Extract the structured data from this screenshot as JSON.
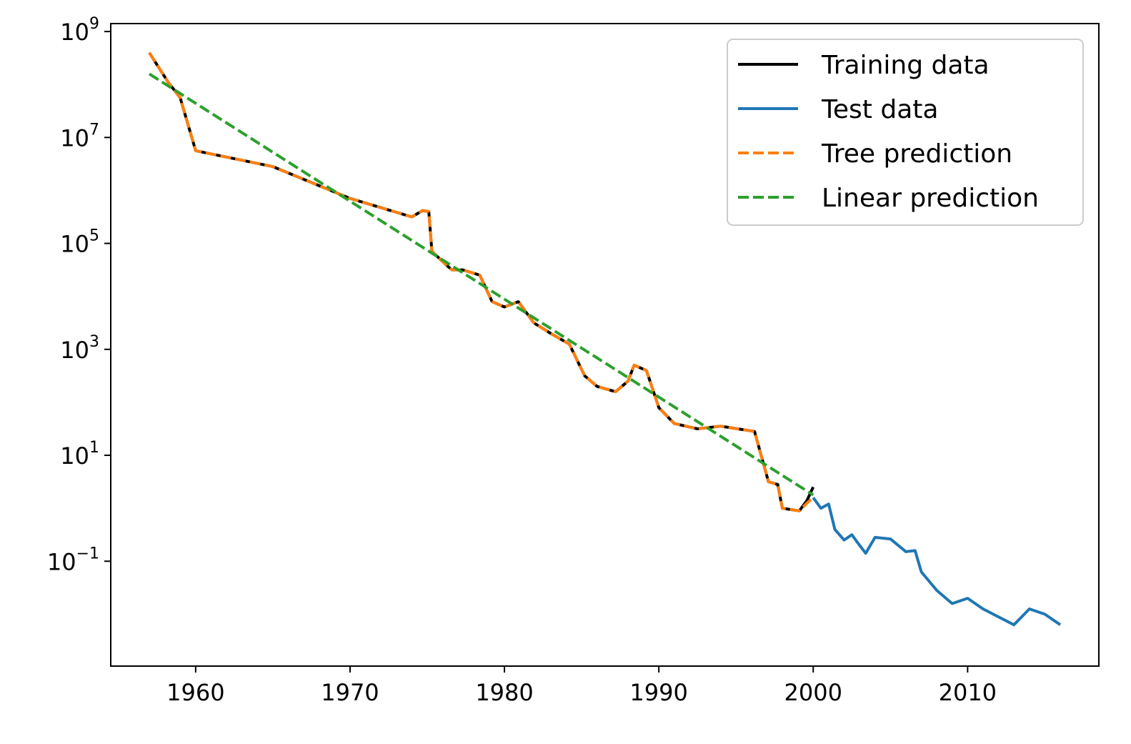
{
  "chart_data": {
    "type": "line",
    "title": "",
    "xlabel": "",
    "ylabel": "",
    "xlim": [
      1954.5,
      2018.5
    ],
    "ylim_log10": [
      -2.98,
      9.15
    ],
    "y_scale": "log",
    "grid": false,
    "legend_position": "top-right",
    "x_ticks": [
      {
        "value": 1960,
        "label": "1960"
      },
      {
        "value": 1970,
        "label": "1970"
      },
      {
        "value": 1980,
        "label": "1980"
      },
      {
        "value": 1990,
        "label": "1990"
      },
      {
        "value": 2000,
        "label": "2000"
      },
      {
        "value": 2010,
        "label": "2010"
      }
    ],
    "y_ticks": [
      {
        "exp": 9,
        "base": "10",
        "sup": "9"
      },
      {
        "exp": 7,
        "base": "10",
        "sup": "7"
      },
      {
        "exp": 5,
        "base": "10",
        "sup": "5"
      },
      {
        "exp": 3,
        "base": "10",
        "sup": "3"
      },
      {
        "exp": 1,
        "base": "10",
        "sup": "1"
      },
      {
        "exp": -1,
        "base": "10",
        "sup": "−1"
      }
    ],
    "series": [
      {
        "name": "Training data",
        "color": "#000000",
        "dash": "solid",
        "x": [
          1957,
          1958.2,
          1959,
          1960,
          1965,
          1970,
          1974,
          1974.7,
          1975.1,
          1975.3,
          1976.2,
          1976.6,
          1977.3,
          1978.4,
          1979.2,
          1980,
          1980.9,
          1981.9,
          1983,
          1984.2,
          1985.2,
          1986,
          1987.2,
          1988,
          1988.4,
          1989.2,
          1990,
          1991,
          1992.5,
          1994,
          1996.2,
          1997.1,
          1997.7,
          1998,
          1999.1,
          1999.6,
          2000
        ],
        "y": [
          8.6,
          8.05,
          7.75,
          6.75,
          6.45,
          5.85,
          5.5,
          5.62,
          5.6,
          4.85,
          4.6,
          4.5,
          4.5,
          4.4,
          3.9,
          3.8,
          3.9,
          3.5,
          3.3,
          3.1,
          2.5,
          2.3,
          2.2,
          2.4,
          2.7,
          2.6,
          1.9,
          1.6,
          1.5,
          1.55,
          1.45,
          0.5,
          0.45,
          0.0,
          -0.05,
          0.15,
          0.4
        ]
      },
      {
        "name": "Test data",
        "color": "#1f77b4",
        "dash": "solid",
        "x": [
          2000,
          2000.5,
          2001,
          2001.4,
          2002,
          2002.5,
          2003,
          2003.4,
          2004,
          2005,
          2006,
          2006.6,
          2007,
          2008,
          2009,
          2010,
          2011,
          2012,
          2013,
          2013.5,
          2014,
          2015,
          2016
        ],
        "y": [
          0.2,
          0.0,
          0.08,
          -0.4,
          -0.6,
          -0.5,
          -0.7,
          -0.85,
          -0.55,
          -0.58,
          -0.82,
          -0.8,
          -1.2,
          -1.55,
          -1.8,
          -1.7,
          -1.9,
          -2.05,
          -2.2,
          -2.05,
          -1.9,
          -2.0,
          -2.2
        ]
      },
      {
        "name": "Tree prediction",
        "color": "#ff7f0e",
        "dash": "dashed",
        "x": [
          1957,
          1958.2,
          1959,
          1960,
          1965,
          1970,
          1974,
          1974.7,
          1975.1,
          1975.3,
          1976.2,
          1976.6,
          1977.3,
          1978.4,
          1979.2,
          1980,
          1980.9,
          1981.9,
          1983,
          1984.2,
          1985.2,
          1986,
          1987.2,
          1988,
          1988.4,
          1989.2,
          1990,
          1991,
          1992.5,
          1994,
          1996.2,
          1997.1,
          1997.7,
          1998,
          1999.1,
          1999.6,
          2000
        ],
        "y": [
          8.6,
          8.05,
          7.75,
          6.75,
          6.45,
          5.85,
          5.5,
          5.62,
          5.6,
          4.85,
          4.6,
          4.5,
          4.5,
          4.4,
          3.9,
          3.8,
          3.9,
          3.5,
          3.3,
          3.1,
          2.5,
          2.3,
          2.2,
          2.4,
          2.7,
          2.6,
          1.9,
          1.6,
          1.5,
          1.55,
          1.45,
          0.5,
          0.45,
          0.0,
          -0.05,
          0.1,
          0.2
        ]
      },
      {
        "name": "Linear prediction",
        "color": "#2ca02c",
        "dash": "dashed",
        "x": [
          1957,
          2000
        ],
        "y": [
          8.2,
          0.25
        ]
      }
    ]
  }
}
